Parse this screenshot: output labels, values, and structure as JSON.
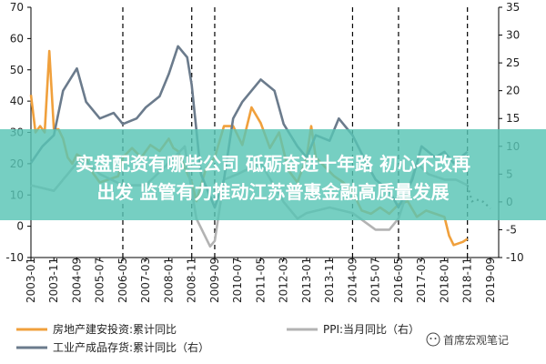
{
  "chart_data": {
    "type": "line",
    "title": "",
    "x_ticks": [
      "2003-01",
      "2003-11",
      "2004-09",
      "2005-07",
      "2006-05",
      "2007-03",
      "2008-01",
      "2008-11",
      "2009-09",
      "2010-07",
      "2011-05",
      "2012-03",
      "2013-01",
      "2013-11",
      "2014-09",
      "2015-07",
      "2016-05",
      "2017-03",
      "2018-01",
      "2018-11",
      "2019-09"
    ],
    "y_left": {
      "ticks": [
        70,
        60,
        50,
        40,
        30,
        20,
        10,
        0,
        -10
      ],
      "range": [
        -10,
        70
      ]
    },
    "y_right": {
      "ticks": [
        35,
        30,
        25,
        20,
        15,
        10,
        5,
        0,
        -5,
        -10
      ],
      "range": [
        -10,
        35
      ]
    },
    "grid": false,
    "legend_placement": "bottom",
    "vertical_dashed_lines": [
      "2006-05",
      "2008-11",
      "2009-09",
      "2014-09",
      "2016-05",
      "2018-11"
    ],
    "series": [
      {
        "name": "房地产建安投资:累计同比",
        "color": "#f0a03c",
        "axis": "left",
        "x": [
          "2003-01",
          "2003-03",
          "2003-05",
          "2003-07",
          "2003-09",
          "2003-11",
          "2004-01",
          "2004-03",
          "2004-05",
          "2004-07",
          "2004-09",
          "2004-11",
          "2005-01",
          "2005-03",
          "2005-07",
          "2005-11",
          "2006-03",
          "2006-05",
          "2006-09",
          "2007-01",
          "2007-05",
          "2007-09",
          "2008-01",
          "2008-03",
          "2008-05",
          "2008-09",
          "2008-11",
          "2009-01",
          "2009-05",
          "2009-09",
          "2010-01",
          "2010-05",
          "2010-09",
          "2011-01",
          "2011-05",
          "2011-09",
          "2012-01",
          "2012-05",
          "2012-09",
          "2013-01",
          "2013-03",
          "2013-05",
          "2013-09",
          "2014-01",
          "2014-05",
          "2014-09",
          "2015-01",
          "2015-05",
          "2015-09",
          "2016-01",
          "2016-05",
          "2016-09",
          "2017-01",
          "2017-05",
          "2017-09",
          "2018-01",
          "2018-03",
          "2018-05",
          "2018-09",
          "2018-11"
        ],
        "values": [
          42,
          30,
          32,
          30,
          56,
          31,
          31,
          28,
          22,
          20,
          23,
          22,
          22,
          18,
          14,
          15,
          16,
          22,
          25,
          22,
          26,
          24,
          28,
          25,
          24,
          17,
          14,
          8,
          18,
          22,
          32,
          32,
          26,
          38,
          33,
          25,
          30,
          18,
          14,
          22,
          32,
          22,
          19,
          16,
          14,
          11,
          5,
          4,
          6,
          4,
          7,
          8,
          3,
          5,
          4,
          3,
          -3,
          -6,
          -5,
          -4
        ]
      },
      {
        "name": "PPI:当月同比（右）",
        "color": "#b3b3b3",
        "axis": "right",
        "x": [
          "2003-01",
          "2003-11",
          "2004-05",
          "2004-11",
          "2005-07",
          "2006-05",
          "2007-03",
          "2008-01",
          "2008-08",
          "2008-11",
          "2009-01",
          "2009-07",
          "2009-09",
          "2010-01",
          "2010-07",
          "2011-05",
          "2012-03",
          "2012-09",
          "2013-01",
          "2013-11",
          "2014-09",
          "2015-07",
          "2016-01",
          "2016-05",
          "2017-01",
          "2017-06",
          "2018-01",
          "2018-06",
          "2018-11",
          "2019-01",
          "2019-03",
          "2019-06",
          "2019-09"
        ],
        "values": [
          3,
          2,
          5,
          8,
          5,
          3,
          3,
          7,
          10,
          2,
          -3,
          -8,
          -7,
          4,
          5,
          7,
          0,
          -3,
          -2,
          -1,
          -2,
          -5,
          -5,
          -3,
          7,
          5,
          4,
          4,
          3,
          0.1,
          0.4,
          0,
          -1.2
        ]
      },
      {
        "name": "工业产成品存货:累计同比（右）",
        "color": "#6b7b8c",
        "axis": "right",
        "x": [
          "2003-01",
          "2003-06",
          "2003-11",
          "2004-03",
          "2004-09",
          "2005-01",
          "2005-07",
          "2006-01",
          "2006-05",
          "2006-11",
          "2007-03",
          "2007-09",
          "2008-01",
          "2008-05",
          "2008-09",
          "2008-11",
          "2009-03",
          "2009-07",
          "2009-09",
          "2010-01",
          "2010-05",
          "2010-09",
          "2011-05",
          "2011-11",
          "2012-03",
          "2012-09",
          "2013-01",
          "2013-05",
          "2013-11",
          "2014-03",
          "2014-09",
          "2015-03",
          "2015-07",
          "2016-01",
          "2016-05",
          "2016-11",
          "2017-03",
          "2017-09",
          "2018-01",
          "2018-05",
          "2018-11"
        ],
        "values": [
          7,
          10,
          12,
          20,
          24,
          18,
          15,
          16,
          14,
          15,
          17,
          19,
          23,
          28,
          26,
          21,
          5,
          1,
          -1,
          4,
          15,
          18,
          22,
          20,
          14,
          10,
          8,
          12,
          11,
          15,
          12,
          7,
          4,
          2,
          -1,
          4,
          10,
          8,
          9,
          7,
          9
        ]
      }
    ]
  },
  "banner": {
    "line1": "实盘配资有哪些公司 砥砺奋进十年路 初心不改再",
    "line2": "出发 监管有力推动江苏普惠金融高质量发展"
  },
  "watermark": "首席宏观笔记"
}
